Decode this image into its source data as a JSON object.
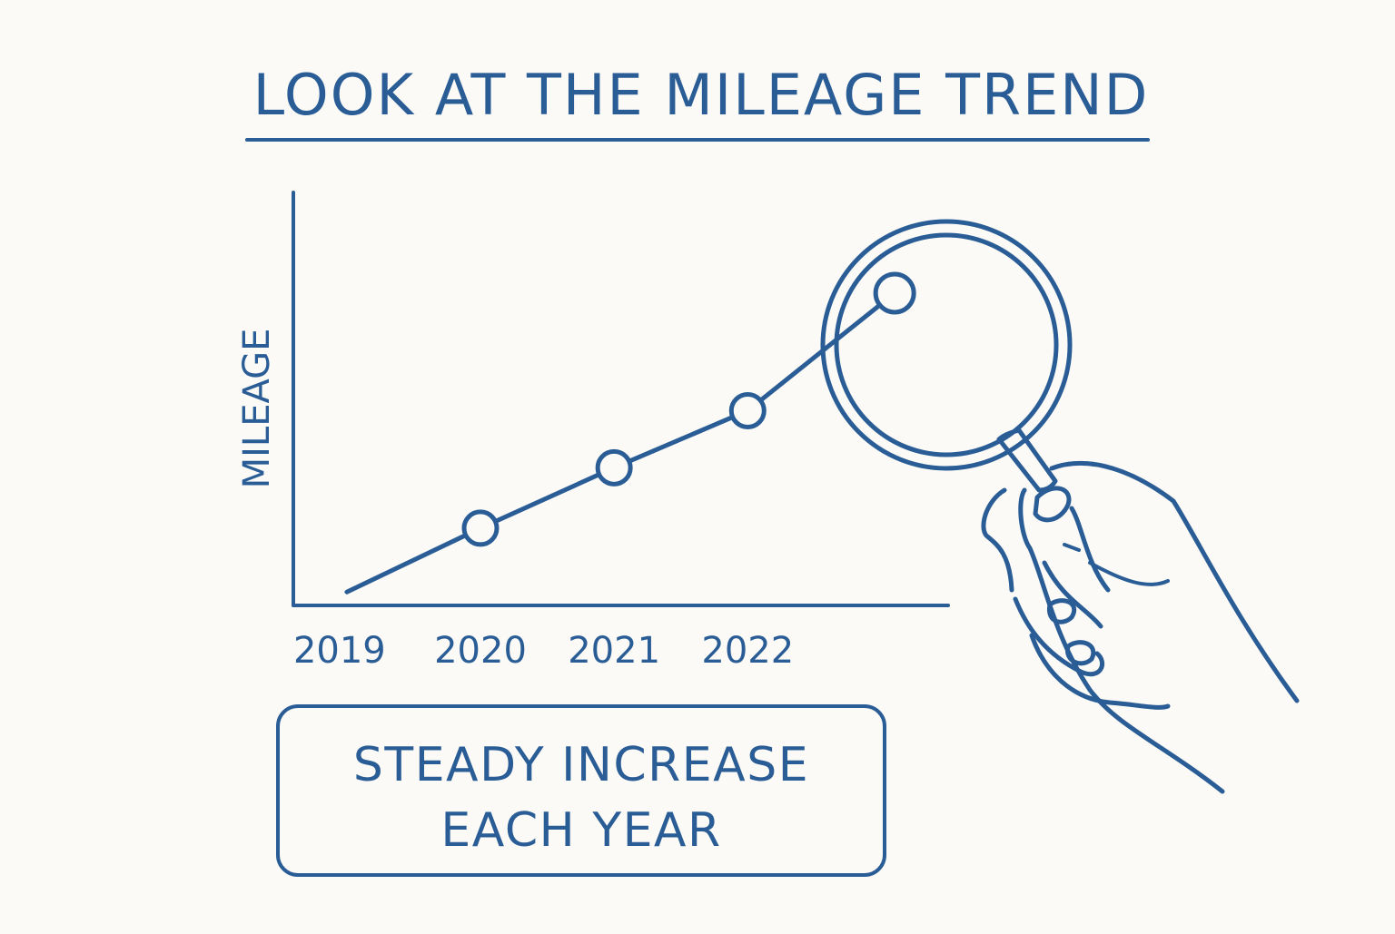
{
  "colors": {
    "ink": "#2a5d96",
    "background": "#fbfaf6"
  },
  "title": "LOOK AT THE MILEAGE TREND",
  "callout": {
    "line1": "STEADY INCREASE",
    "line2": "EACH YEAR"
  },
  "icons": [
    "magnifying-glass-icon",
    "hand-icon"
  ],
  "chart_data": {
    "type": "line",
    "title": "LOOK AT THE MILEAGE TREND",
    "xlabel": "",
    "ylabel": "MILEAGE",
    "x_tick_labels": [
      "2019",
      "2020",
      "2021",
      "2022"
    ],
    "grid": false,
    "legend": "none",
    "series": [
      {
        "points": [
          {
            "x": 2019,
            "y": 0.4
          },
          {
            "x": 2020,
            "y": 2.3
          },
          {
            "x": 2021,
            "y": 4.1
          },
          {
            "x": 2022,
            "y": 5.8
          },
          {
            "x": 2023.1,
            "y": 9.3
          }
        ],
        "markers": [
          2020,
          2021,
          2022,
          2023.1
        ]
      }
    ],
    "xlim": [
      2018.6,
      2023.5
    ],
    "ylim": [
      0,
      12.3
    ]
  }
}
